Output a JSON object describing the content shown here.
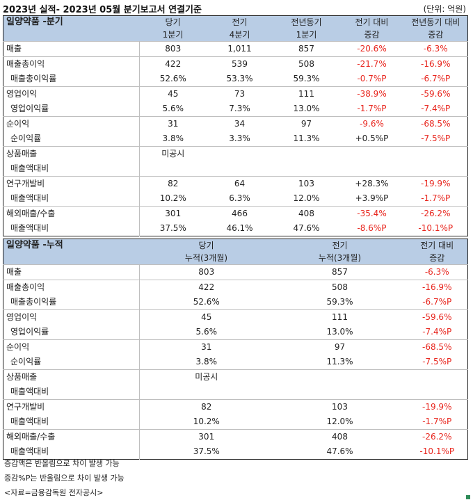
{
  "title": "2023년 실적- 2023년 05월 분기보고서 연결기준",
  "unit": "(단위: 억원)",
  "q": {
    "header": {
      "name": "일양약품 -분기",
      "c1": [
        "당기",
        "1분기"
      ],
      "c2": [
        "전기",
        "4분기"
      ],
      "c3": [
        "전년동기",
        "1분기"
      ],
      "c4": [
        "전기 대비",
        "증감"
      ],
      "c5": [
        "전년동기 대비",
        "증감"
      ]
    },
    "rows": [
      [
        "매출",
        "803",
        "1,011",
        "857",
        "-20.6%",
        "-6.3%"
      ],
      [
        "매출총이익",
        "422",
        "539",
        "508",
        "-21.7%",
        "-16.9%"
      ],
      [
        "매출총이익률",
        "52.6%",
        "53.3%",
        "59.3%",
        "-0.7%P",
        "-6.7%P"
      ],
      [
        "영업이익",
        "45",
        "73",
        "111",
        "-38.9%",
        "-59.6%"
      ],
      [
        "영업이익률",
        "5.6%",
        "7.3%",
        "13.0%",
        "-1.7%P",
        "-7.4%P"
      ],
      [
        "순이익",
        "31",
        "34",
        "97",
        "-9.6%",
        "-68.5%"
      ],
      [
        "순이익률",
        "3.8%",
        "3.3%",
        "11.3%",
        "+0.5%P",
        "-7.5%P"
      ],
      [
        "상품매출",
        "미공시",
        "",
        "",
        "",
        ""
      ],
      [
        "매출액대비",
        "",
        "",
        "",
        "",
        ""
      ],
      [
        "연구개발비",
        "82",
        "64",
        "103",
        "+28.3%",
        "-19.9%"
      ],
      [
        "매출액대비",
        "10.2%",
        "6.3%",
        "12.0%",
        "+3.9%P",
        "-1.7%P"
      ],
      [
        "해외매출/수출",
        "301",
        "466",
        "408",
        "-35.4%",
        "-26.2%"
      ],
      [
        "매출액대비",
        "37.5%",
        "46.1%",
        "47.6%",
        "-8.6%P",
        "-10.1%P"
      ]
    ]
  },
  "c": {
    "header": {
      "name": "일양약품 -누적",
      "c1": [
        "당기",
        "누적(3개월)"
      ],
      "c2": [
        "전기",
        "누적(3개월)"
      ],
      "c3": [
        "전기 대비",
        "증감"
      ]
    },
    "rows": [
      [
        "매출",
        "803",
        "857",
        "-6.3%"
      ],
      [
        "매출총이익",
        "422",
        "508",
        "-16.9%"
      ],
      [
        "매출총이익률",
        "52.6%",
        "59.3%",
        "-6.7%P"
      ],
      [
        "영업이익",
        "45",
        "111",
        "-59.6%"
      ],
      [
        "영업이익률",
        "5.6%",
        "13.0%",
        "-7.4%P"
      ],
      [
        "순이익",
        "31",
        "97",
        "-68.5%"
      ],
      [
        "순이익률",
        "3.8%",
        "11.3%",
        "-7.5%P"
      ],
      [
        "상품매출",
        "미공시",
        "",
        ""
      ],
      [
        "매출액대비",
        "",
        "",
        ""
      ],
      [
        "연구개발비",
        "82",
        "103",
        "-19.9%"
      ],
      [
        "매출액대비",
        "10.2%",
        "12.0%",
        "-1.7%P"
      ],
      [
        "해외매출/수출",
        "301",
        "408",
        "-26.2%"
      ],
      [
        "매출액대비",
        "37.5%",
        "47.6%",
        "-10.1%P"
      ]
    ]
  },
  "notes": [
    "증감액은 반올림으로 차이 발생 가능",
    "증감%P는 반올림으로 차이 발생 가능",
    "<자료=금융감독원 전자공시>"
  ]
}
